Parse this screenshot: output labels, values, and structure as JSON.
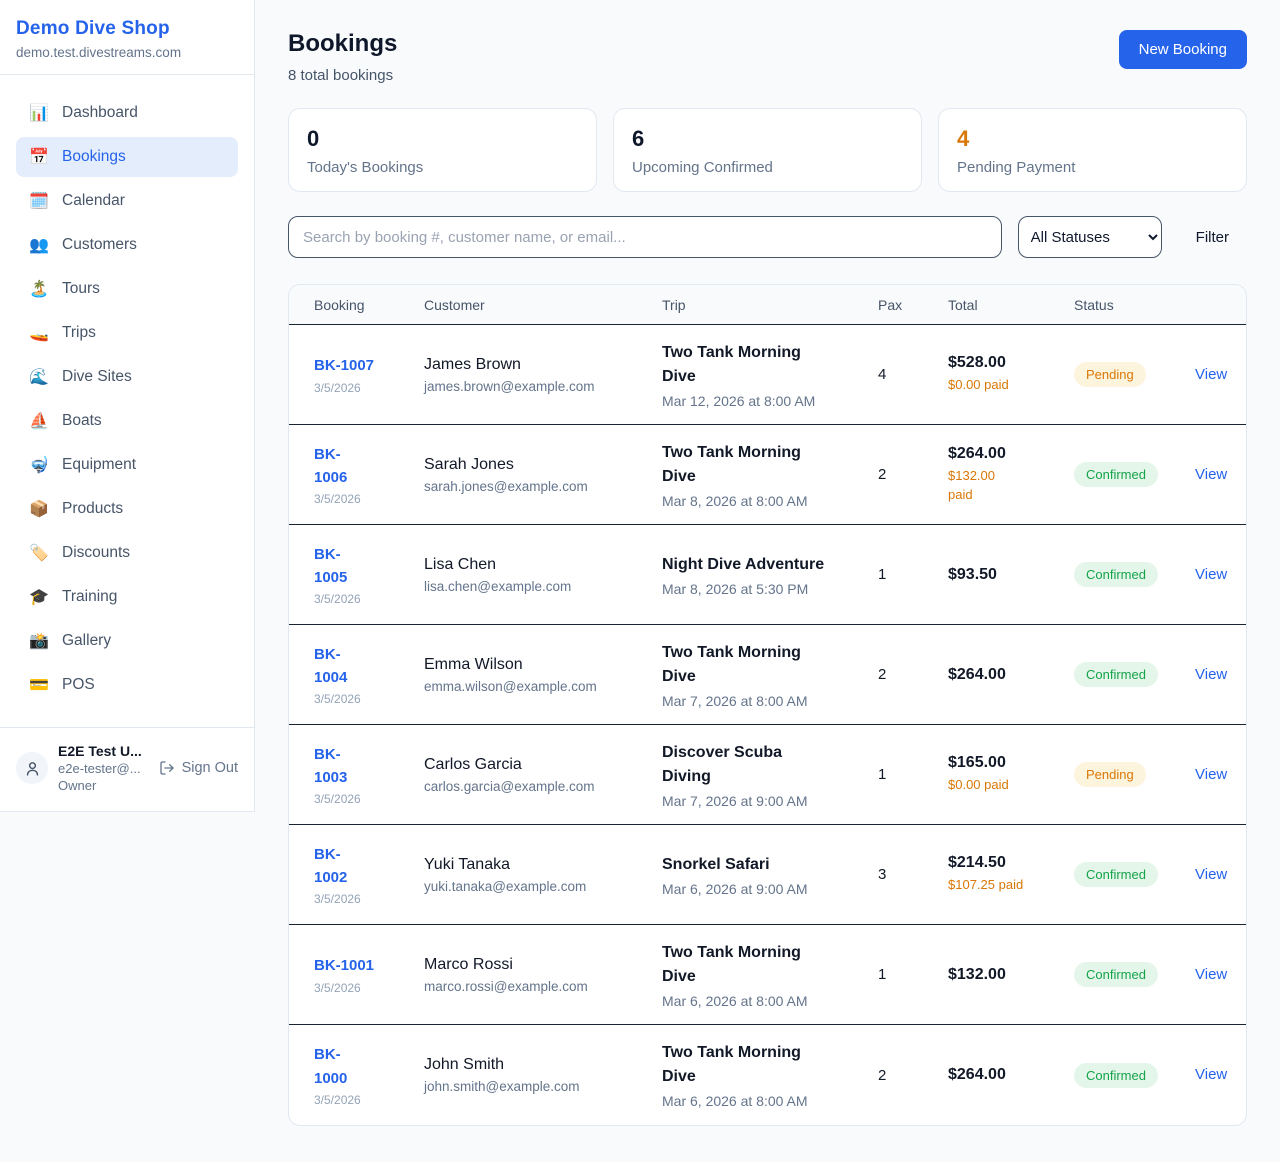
{
  "colors": {
    "brand": "#2563eb",
    "link": "#2563eb",
    "accent_orange": "#d97706",
    "pending_bg": "#fdf4de",
    "pending_text": "#d97706",
    "confirmed_bg": "#e4f6ea",
    "confirmed_text": "#16a34a"
  },
  "sidebar": {
    "brand": "Demo Dive Shop",
    "domain": "demo.test.divestreams.com",
    "items": [
      {
        "icon": "📊",
        "icon_name": "bar-chart-icon",
        "label": "Dashboard",
        "active": false
      },
      {
        "icon": "📅",
        "icon_name": "calendar-page-icon",
        "label": "Bookings",
        "active": true
      },
      {
        "icon": "🗓️",
        "icon_name": "spiral-calendar-icon",
        "label": "Calendar",
        "active": false
      },
      {
        "icon": "👥",
        "icon_name": "people-icon",
        "label": "Customers",
        "active": false
      },
      {
        "icon": "🏝️",
        "icon_name": "island-icon",
        "label": "Tours",
        "active": false
      },
      {
        "icon": "🚤",
        "icon_name": "speedboat-icon",
        "label": "Trips",
        "active": false
      },
      {
        "icon": "🌊",
        "icon_name": "wave-icon",
        "label": "Dive Sites",
        "active": false
      },
      {
        "icon": "⛵",
        "icon_name": "sailboat-icon",
        "label": "Boats",
        "active": false
      },
      {
        "icon": "🤿",
        "icon_name": "diving-mask-icon",
        "label": "Equipment",
        "active": false
      },
      {
        "icon": "📦",
        "icon_name": "package-icon",
        "label": "Products",
        "active": false
      },
      {
        "icon": "🏷️",
        "icon_name": "tag-icon",
        "label": "Discounts",
        "active": false
      },
      {
        "icon": "🎓",
        "icon_name": "graduation-cap-icon",
        "label": "Training",
        "active": false
      },
      {
        "icon": "📸",
        "icon_name": "camera-icon",
        "label": "Gallery",
        "active": false
      },
      {
        "icon": "💳",
        "icon_name": "credit-card-icon",
        "label": "POS",
        "active": false
      }
    ],
    "user": {
      "name": "E2E Test U...",
      "email": "e2e-tester@...",
      "role": "Owner",
      "sign_out_label": "Sign Out"
    }
  },
  "header": {
    "title": "Bookings",
    "subtitle": "8 total bookings",
    "new_booking_label": "New Booking"
  },
  "stats": [
    {
      "value": "0",
      "label": "Today's Bookings",
      "highlight": false
    },
    {
      "value": "6",
      "label": "Upcoming Confirmed",
      "highlight": false
    },
    {
      "value": "4",
      "label": "Pending Payment",
      "highlight": true
    }
  ],
  "filters": {
    "search_placeholder": "Search by booking #, customer name, or email...",
    "status_selected": "All Statuses",
    "filter_label": "Filter"
  },
  "table": {
    "columns": [
      "Booking",
      "Customer",
      "Trip",
      "Pax",
      "Total",
      "Status"
    ],
    "view_label": "View",
    "bookings": [
      {
        "number": "BK-1007",
        "date": "3/5/2026",
        "customer_name": "James Brown",
        "customer_email": "james.brown@example.com",
        "trip_name": "Two Tank Morning\nDive",
        "trip_datetime": "Mar 12, 2026 at 8:00 AM",
        "pax": "4",
        "total": "$528.00",
        "paid": "$0.00 paid",
        "status": "Pending"
      },
      {
        "number": "BK-\n1006",
        "date": "3/5/2026",
        "customer_name": "Sarah Jones",
        "customer_email": "sarah.jones@example.com",
        "trip_name": "Two Tank Morning\nDive",
        "trip_datetime": "Mar 8, 2026 at 8:00 AM",
        "pax": "2",
        "total": "$264.00",
        "paid": "$132.00\npaid",
        "status": "Confirmed"
      },
      {
        "number": "BK-\n1005",
        "date": "3/5/2026",
        "customer_name": "Lisa Chen",
        "customer_email": "lisa.chen@example.com",
        "trip_name": "Night Dive Adventure",
        "trip_datetime": "Mar 8, 2026 at 5:30 PM",
        "pax": "1",
        "total": "$93.50",
        "paid": null,
        "status": "Confirmed"
      },
      {
        "number": "BK-\n1004",
        "date": "3/5/2026",
        "customer_name": "Emma Wilson",
        "customer_email": "emma.wilson@example.com",
        "trip_name": "Two Tank Morning\nDive",
        "trip_datetime": "Mar 7, 2026 at 8:00 AM",
        "pax": "2",
        "total": "$264.00",
        "paid": null,
        "status": "Confirmed"
      },
      {
        "number": "BK-\n1003",
        "date": "3/5/2026",
        "customer_name": "Carlos Garcia",
        "customer_email": "carlos.garcia@example.com",
        "trip_name": "Discover Scuba\nDiving",
        "trip_datetime": "Mar 7, 2026 at 9:00 AM",
        "pax": "1",
        "total": "$165.00",
        "paid": "$0.00 paid",
        "status": "Pending"
      },
      {
        "number": "BK-\n1002",
        "date": "3/5/2026",
        "customer_name": "Yuki Tanaka",
        "customer_email": "yuki.tanaka@example.com",
        "trip_name": "Snorkel Safari",
        "trip_datetime": "Mar 6, 2026 at 9:00 AM",
        "pax": "3",
        "total": "$214.50",
        "paid": "$107.25 paid",
        "status": "Confirmed"
      },
      {
        "number": "BK-1001",
        "date": "3/5/2026",
        "customer_name": "Marco Rossi",
        "customer_email": "marco.rossi@example.com",
        "trip_name": "Two Tank Morning\nDive",
        "trip_datetime": "Mar 6, 2026 at 8:00 AM",
        "pax": "1",
        "total": "$132.00",
        "paid": null,
        "status": "Confirmed"
      },
      {
        "number": "BK-\n1000",
        "date": "3/5/2026",
        "customer_name": "John Smith",
        "customer_email": "john.smith@example.com",
        "trip_name": "Two Tank Morning\nDive",
        "trip_datetime": "Mar 6, 2026 at 8:00 AM",
        "pax": "2",
        "total": "$264.00",
        "paid": null,
        "status": "Confirmed"
      }
    ]
  }
}
